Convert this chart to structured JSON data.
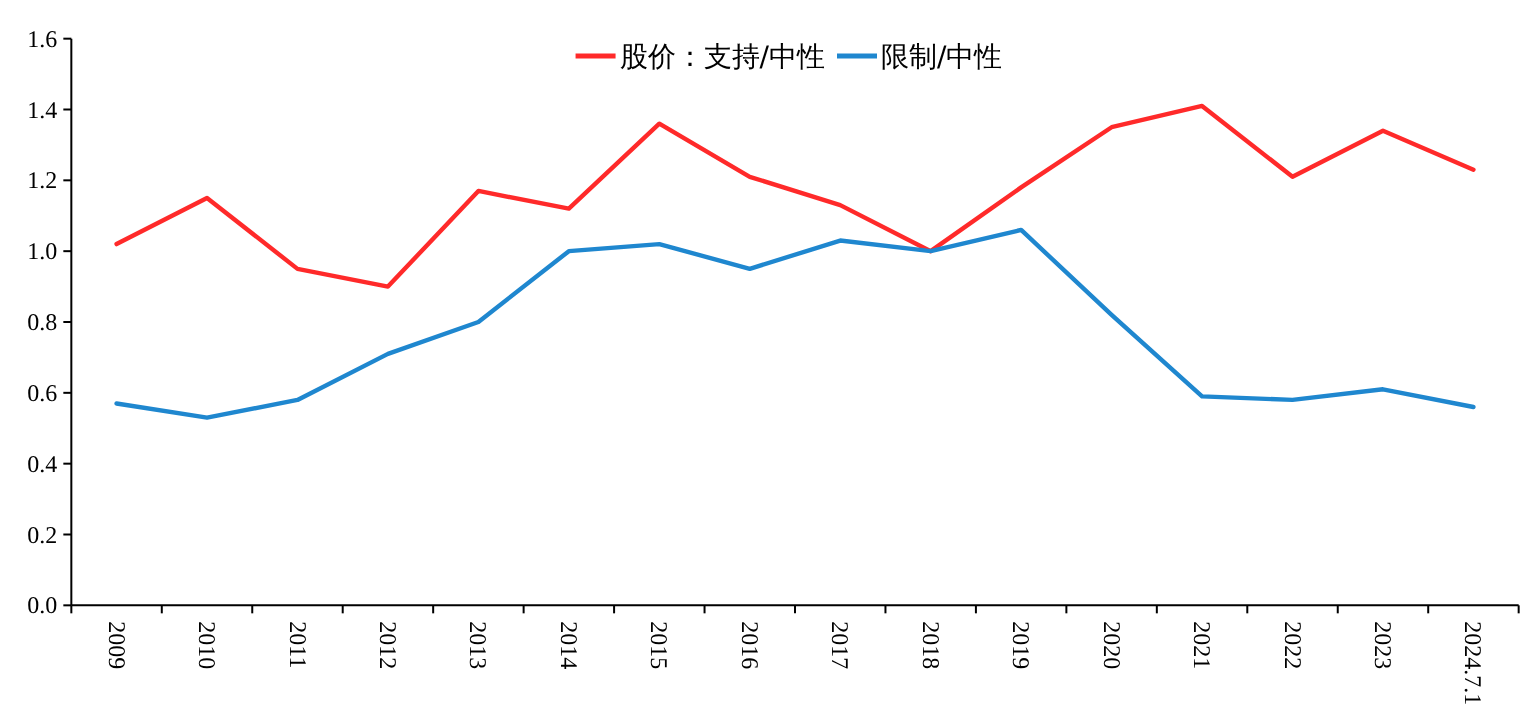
{
  "chart_data": {
    "type": "line",
    "categories": [
      "2009",
      "2010",
      "2011",
      "2012",
      "2013",
      "2014",
      "2015",
      "2016",
      "2017",
      "2018",
      "2019",
      "2020",
      "2021",
      "2022",
      "2023",
      "2024.7.1"
    ],
    "series": [
      {
        "name": "股价：支持/中性",
        "color": "#ff2a2a",
        "values": [
          1.02,
          1.15,
          0.95,
          0.9,
          1.17,
          1.12,
          1.36,
          1.21,
          1.13,
          1.0,
          1.18,
          1.35,
          1.41,
          1.21,
          1.34,
          1.23
        ]
      },
      {
        "name": "限制/中性",
        "color": "#1f87cf",
        "values": [
          0.57,
          0.53,
          0.58,
          0.71,
          0.8,
          1.0,
          1.02,
          0.95,
          1.03,
          1.0,
          1.06,
          0.82,
          0.59,
          0.58,
          0.61,
          0.56
        ]
      }
    ],
    "ylim": [
      0,
      1.6
    ],
    "yticks": [
      {
        "value": 0,
        "label": "0.0"
      },
      0.2,
      0.4,
      0.6,
      0.8,
      {
        "value": 1,
        "label": "1.0"
      },
      1.2,
      1.4,
      1.6
    ],
    "legend": "top",
    "grid": false,
    "marker": "none",
    "line_style": "solid"
  }
}
